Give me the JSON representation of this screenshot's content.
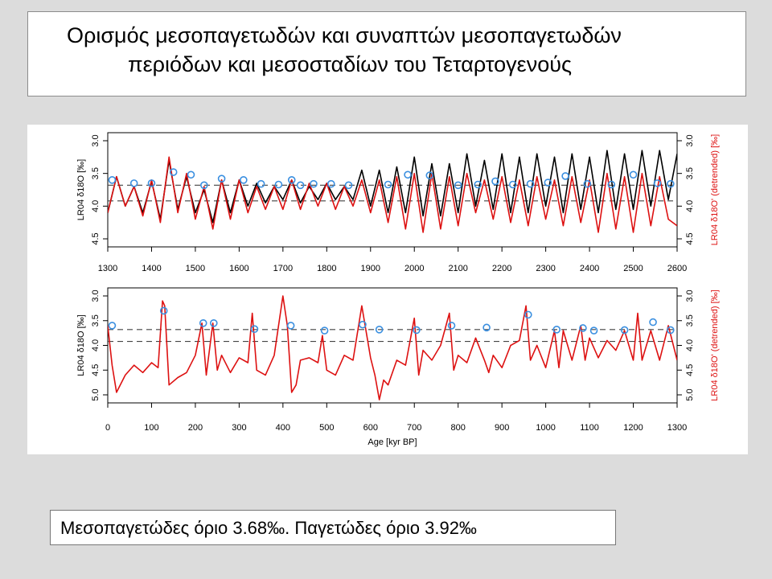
{
  "slide": {
    "title_line1": "Ορισμός μεσοπαγετωδών και συναπτών μεσοπαγετωδών",
    "title_line2": "περιόδων και μεσοσταδίων του Τεταρτογενούς",
    "caption": "Μεσοπαγετώδες όριο 3.68‰. Παγετώδες όριο 3.92‰"
  },
  "colors": {
    "raw_series": "#000000",
    "detrended_series": "#dd1111",
    "markers": "#3a8fe0",
    "threshold_lines": "#444444",
    "right_axis_label": "#dd1111"
  },
  "chart_data": [
    {
      "type": "line",
      "panel": "top",
      "xlabel": "",
      "ylabel_left": "LR04 δ18O [‰]",
      "ylabel_right": "LR04 δ18O' (detrended) [‰]",
      "x_range": [
        1300,
        2600
      ],
      "y_range_reversed": [
        3.0,
        4.5
      ],
      "x_ticks": [
        1300,
        1400,
        1500,
        1600,
        1700,
        1800,
        1900,
        2000,
        2100,
        2200,
        2300,
        2400,
        2500,
        2600
      ],
      "y_ticks": [
        "3.0",
        "3.5",
        "4.0",
        "4.5"
      ],
      "thresholds": [
        3.68,
        3.92
      ],
      "series": [
        {
          "key": "raw",
          "style": "black line",
          "x": [
            1300,
            1320,
            1340,
            1360,
            1380,
            1400,
            1420,
            1440,
            1460,
            1480,
            1500,
            1520,
            1540,
            1560,
            1580,
            1600,
            1620,
            1640,
            1660,
            1680,
            1700,
            1720,
            1740,
            1760,
            1780,
            1800,
            1820,
            1840,
            1860,
            1880,
            1900,
            1920,
            1940,
            1960,
            1980,
            2000,
            2020,
            2040,
            2060,
            2080,
            2100,
            2120,
            2140,
            2160,
            2180,
            2200,
            2220,
            2240,
            2260,
            2280,
            2300,
            2320,
            2340,
            2360,
            2380,
            2400,
            2420,
            2440,
            2460,
            2480,
            2500,
            2520,
            2540,
            2560,
            2580,
            2600
          ],
          "y": [
            4.1,
            3.55,
            4.0,
            3.7,
            4.1,
            3.62,
            4.2,
            3.3,
            4.05,
            3.55,
            4.1,
            3.75,
            4.25,
            3.6,
            4.1,
            3.6,
            4.0,
            3.65,
            3.95,
            3.7,
            3.9,
            3.6,
            3.95,
            3.7,
            3.9,
            3.65,
            3.9,
            3.7,
            3.9,
            3.45,
            4.0,
            3.45,
            4.1,
            3.4,
            4.1,
            3.25,
            4.15,
            3.35,
            4.15,
            3.35,
            4.1,
            3.2,
            4.0,
            3.3,
            4.05,
            3.2,
            4.1,
            3.25,
            4.1,
            3.2,
            4.0,
            3.25,
            4.1,
            3.2,
            4.05,
            3.25,
            4.1,
            3.15,
            4.05,
            3.2,
            4.05,
            3.15,
            4.0,
            3.15,
            3.9,
            3.2
          ]
        },
        {
          "key": "detrended",
          "style": "red line",
          "x": [
            1300,
            1320,
            1340,
            1360,
            1380,
            1400,
            1420,
            1440,
            1460,
            1480,
            1500,
            1520,
            1540,
            1560,
            1580,
            1600,
            1620,
            1640,
            1660,
            1680,
            1700,
            1720,
            1740,
            1760,
            1780,
            1800,
            1820,
            1840,
            1860,
            1880,
            1900,
            1920,
            1940,
            1960,
            1980,
            2000,
            2020,
            2040,
            2060,
            2080,
            2100,
            2120,
            2140,
            2160,
            2180,
            2200,
            2220,
            2240,
            2260,
            2280,
            2300,
            2320,
            2340,
            2360,
            2380,
            2400,
            2420,
            2440,
            2460,
            2480,
            2500,
            2520,
            2540,
            2560,
            2580,
            2600
          ],
          "y": [
            4.1,
            3.55,
            4.0,
            3.7,
            4.15,
            3.6,
            4.25,
            3.25,
            4.1,
            3.5,
            4.2,
            3.7,
            4.35,
            3.6,
            4.2,
            3.6,
            4.1,
            3.7,
            4.05,
            3.7,
            4.05,
            3.6,
            4.05,
            3.65,
            4.0,
            3.65,
            4.05,
            3.7,
            4.0,
            3.6,
            4.1,
            3.6,
            4.25,
            3.55,
            4.35,
            3.5,
            4.4,
            3.5,
            4.35,
            3.55,
            4.3,
            3.5,
            4.1,
            3.6,
            4.2,
            3.55,
            4.25,
            3.6,
            4.3,
            3.55,
            4.2,
            3.6,
            4.3,
            3.55,
            4.25,
            3.6,
            4.4,
            3.5,
            4.35,
            3.55,
            4.4,
            3.5,
            4.3,
            3.55,
            4.2,
            4.3
          ]
        },
        {
          "key": "markers",
          "style": "blue circles",
          "x": [
            1310,
            1360,
            1400,
            1450,
            1490,
            1520,
            1560,
            1610,
            1650,
            1690,
            1720,
            1740,
            1770,
            1810,
            1850,
            1940,
            1985,
            2035,
            2100,
            2145,
            2185,
            2225,
            2265,
            2305,
            2345,
            2395,
            2450,
            2500,
            2555,
            2585
          ],
          "y": [
            3.6,
            3.65,
            3.65,
            3.48,
            3.52,
            3.68,
            3.58,
            3.6,
            3.66,
            3.67,
            3.6,
            3.68,
            3.66,
            3.66,
            3.68,
            3.67,
            3.52,
            3.53,
            3.68,
            3.67,
            3.62,
            3.67,
            3.66,
            3.64,
            3.54,
            3.66,
            3.67,
            3.52,
            3.65,
            3.66
          ]
        }
      ]
    },
    {
      "type": "line",
      "panel": "bottom",
      "xlabel": "Age [kyr BP]",
      "ylabel_left": "LR04 δ18O [‰]",
      "ylabel_right": "LR04 δ18O' (detrended) [‰]",
      "x_range": [
        0,
        1300
      ],
      "y_range_reversed": [
        3.0,
        5.0
      ],
      "x_ticks": [
        0,
        100,
        200,
        300,
        400,
        500,
        600,
        700,
        800,
        900,
        1000,
        1100,
        1200,
        1300
      ],
      "y_ticks": [
        "3.0",
        "3.5",
        "4.0",
        "4.5",
        "5.0"
      ],
      "thresholds": [
        3.68,
        3.92
      ],
      "series": [
        {
          "key": "detrended",
          "style": "red line",
          "x": [
            0,
            10,
            20,
            40,
            60,
            80,
            100,
            115,
            125,
            130,
            140,
            160,
            180,
            200,
            215,
            225,
            240,
            250,
            260,
            280,
            300,
            320,
            330,
            340,
            360,
            380,
            400,
            410,
            420,
            430,
            440,
            460,
            480,
            490,
            500,
            520,
            540,
            560,
            580,
            600,
            610,
            620,
            630,
            640,
            660,
            680,
            700,
            710,
            720,
            740,
            760,
            780,
            790,
            800,
            820,
            840,
            860,
            870,
            880,
            900,
            920,
            940,
            955,
            965,
            980,
            1000,
            1020,
            1030,
            1040,
            1060,
            1080,
            1090,
            1100,
            1120,
            1140,
            1160,
            1180,
            1200,
            1210,
            1220,
            1240,
            1260,
            1280,
            1300
          ],
          "y": [
            3.6,
            4.4,
            4.95,
            4.6,
            4.4,
            4.55,
            4.35,
            4.45,
            3.1,
            3.2,
            4.8,
            4.65,
            4.55,
            4.2,
            3.55,
            4.6,
            3.55,
            4.5,
            4.2,
            4.55,
            4.25,
            4.35,
            3.35,
            4.5,
            4.6,
            4.2,
            3.0,
            3.6,
            4.95,
            4.8,
            4.3,
            4.25,
            4.35,
            3.8,
            4.5,
            4.6,
            4.2,
            4.3,
            3.2,
            4.25,
            4.6,
            5.1,
            4.7,
            4.8,
            4.3,
            4.4,
            3.45,
            4.6,
            4.1,
            4.3,
            4.0,
            3.35,
            4.5,
            4.2,
            4.35,
            3.85,
            4.3,
            4.55,
            4.2,
            4.45,
            4.0,
            3.9,
            3.2,
            4.3,
            4.0,
            4.45,
            3.7,
            4.45,
            3.7,
            4.3,
            3.6,
            4.3,
            3.85,
            4.25,
            3.9,
            4.1,
            3.7,
            4.3,
            3.35,
            4.3,
            3.7,
            4.3,
            3.6,
            4.3
          ]
        },
        {
          "key": "markers",
          "style": "blue circles",
          "x": [
            10,
            128,
            218,
            242,
            335,
            418,
            495,
            582,
            620,
            705,
            785,
            865,
            960,
            1025,
            1085,
            1110,
            1180,
            1245,
            1285
          ],
          "y": [
            3.6,
            3.3,
            3.55,
            3.55,
            3.67,
            3.6,
            3.7,
            3.58,
            3.68,
            3.69,
            3.6,
            3.64,
            3.38,
            3.68,
            3.65,
            3.7,
            3.69,
            3.53,
            3.69
          ]
        }
      ]
    }
  ]
}
